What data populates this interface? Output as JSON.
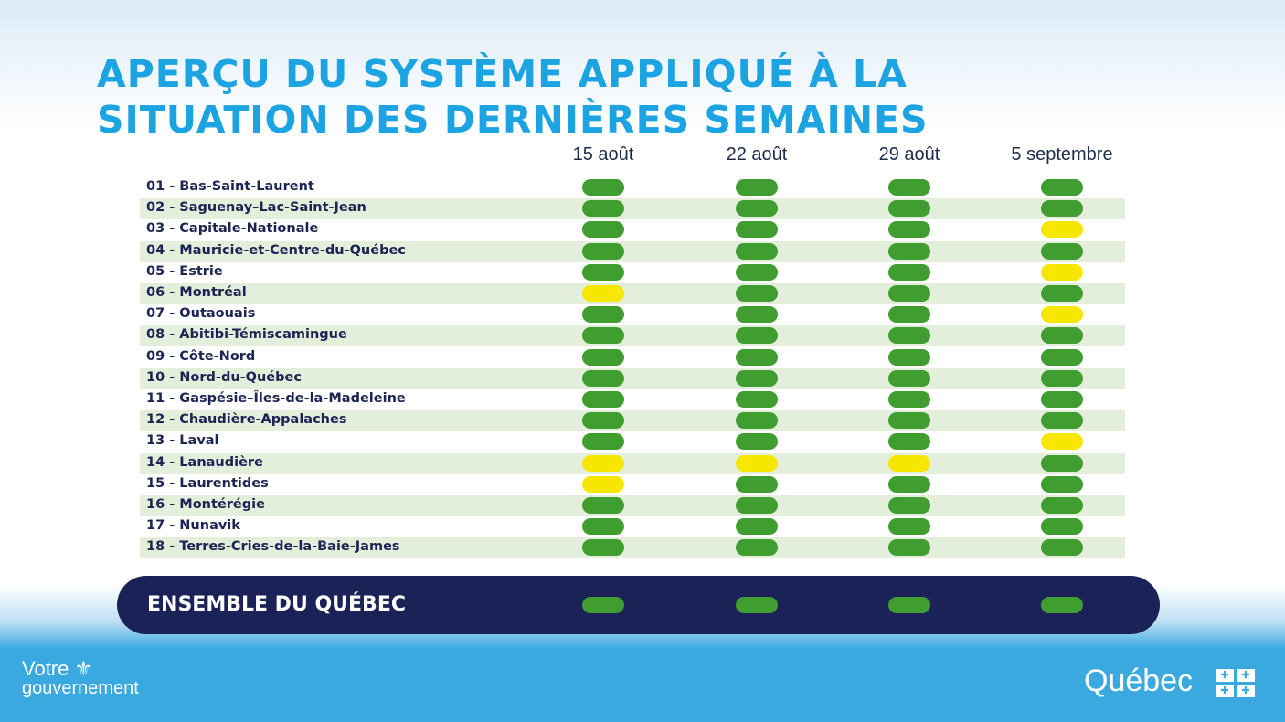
{
  "title_lines": [
    "APERÇU DU SYSTÈME APPLIQUÉ À LA",
    "SITUATION DES DERNIÈRES SEMAINES"
  ],
  "columns": [
    "15 août",
    "22 août",
    "29 août",
    "5 septembre"
  ],
  "colors": {
    "green": "#3f9e2f",
    "yellow": "#f7e600"
  },
  "regions": [
    {
      "label": "01 - Bas-Saint-Laurent",
      "status": [
        "green",
        "green",
        "green",
        "green"
      ]
    },
    {
      "label": "02 - Saguenay–Lac-Saint-Jean",
      "status": [
        "green",
        "green",
        "green",
        "green"
      ]
    },
    {
      "label": "03 - Capitale-Nationale",
      "status": [
        "green",
        "green",
        "green",
        "yellow"
      ]
    },
    {
      "label": "04 - Mauricie-et-Centre-du-Québec",
      "status": [
        "green",
        "green",
        "green",
        "green"
      ]
    },
    {
      "label": "05 - Estrie",
      "status": [
        "green",
        "green",
        "green",
        "yellow"
      ]
    },
    {
      "label": "06 - Montréal",
      "status": [
        "yellow",
        "green",
        "green",
        "green"
      ]
    },
    {
      "label": "07 - Outaouais",
      "status": [
        "green",
        "green",
        "green",
        "yellow"
      ]
    },
    {
      "label": "08 - Abitibi-Témiscamingue",
      "status": [
        "green",
        "green",
        "green",
        "green"
      ]
    },
    {
      "label": "09 - Côte-Nord",
      "status": [
        "green",
        "green",
        "green",
        "green"
      ]
    },
    {
      "label": "10 - Nord-du-Québec",
      "status": [
        "green",
        "green",
        "green",
        "green"
      ]
    },
    {
      "label": "11 - Gaspésie–Îles-de-la-Madeleine",
      "status": [
        "green",
        "green",
        "green",
        "green"
      ]
    },
    {
      "label": "12 - Chaudière-Appalaches",
      "status": [
        "green",
        "green",
        "green",
        "green"
      ]
    },
    {
      "label": "13 - Laval",
      "status": [
        "green",
        "green",
        "green",
        "yellow"
      ]
    },
    {
      "label": "14 - Lanaudière",
      "status": [
        "yellow",
        "yellow",
        "yellow",
        "green"
      ]
    },
    {
      "label": "15 - Laurentides",
      "status": [
        "yellow",
        "green",
        "green",
        "green"
      ]
    },
    {
      "label": "16 - Montérégie",
      "status": [
        "green",
        "green",
        "green",
        "green"
      ]
    },
    {
      "label": "17 - Nunavik",
      "status": [
        "green",
        "green",
        "green",
        "green"
      ]
    },
    {
      "label": "18 - Terres-Cries-de-la-Baie-James",
      "status": [
        "green",
        "green",
        "green",
        "green"
      ]
    }
  ],
  "total": {
    "label": "ENSEMBLE DU QUÉBEC",
    "status": [
      "green",
      "green",
      "green",
      "green"
    ]
  },
  "footer": {
    "left_logo": "Votre gouvernement",
    "right_logo": "Québec"
  }
}
